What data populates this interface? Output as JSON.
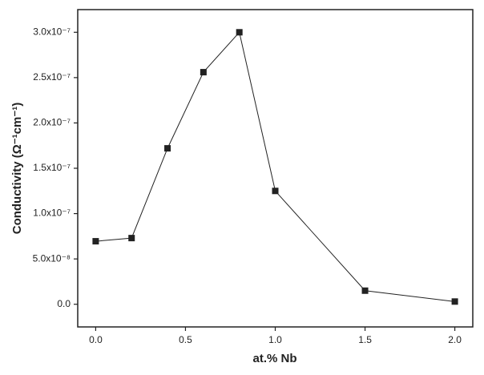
{
  "chart_data": {
    "type": "line",
    "x_label": "at.% Nb",
    "y_label": "Conductivity (Ω⁻¹cm⁻¹)",
    "x": [
      0,
      0.2,
      0.4,
      0.6,
      0.8,
      1.0,
      1.5,
      2.0
    ],
    "series": [
      {
        "color": "#222222",
        "values": [
          6.95e-08,
          7.3e-08,
          1.72e-07,
          2.56e-07,
          3e-07,
          1.25e-07,
          1.5e-08,
          3e-09
        ]
      }
    ],
    "xlim": [
      -0.1,
      2.1
    ],
    "xticks": [
      {
        "value": 0,
        "label": "0.0"
      },
      0.5,
      {
        "value": 1,
        "label": "1.0"
      },
      1.5,
      {
        "value": 2,
        "label": "2.0"
      }
    ],
    "ylim": [
      -2.5e-08,
      3.25e-07
    ],
    "yticks": [
      {
        "value": 0,
        "label": "0.0"
      },
      {
        "value": 5e-08,
        "label": "5.0x10⁻⁸"
      },
      {
        "value": 1e-07,
        "label": "1.0x10⁻⁷"
      },
      {
        "value": 1.5e-07,
        "label": "1.5x10⁻⁷"
      },
      {
        "value": 2e-07,
        "label": "2.0x10⁻⁷"
      },
      {
        "value": 2.5e-07,
        "label": "2.5x10⁻⁷"
      },
      {
        "value": 3e-07,
        "label": "3.0x10⁻⁷"
      }
    ]
  }
}
